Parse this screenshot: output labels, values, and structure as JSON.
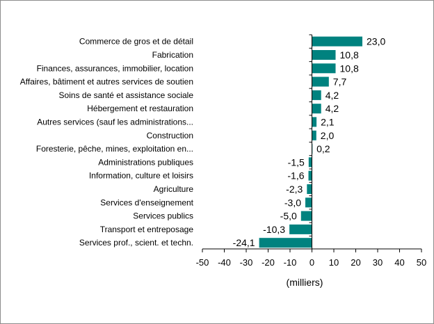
{
  "chart_data": {
    "type": "bar",
    "orientation": "horizontal",
    "categories": [
      "Commerce de gros et de détail",
      "Fabrication",
      "Finances, assurances, immobilier, location",
      "Affaires, bâtiment et autres services de soutien",
      "Soins de santé et assistance sociale",
      "Hébergement et restauration",
      "Autres services (sauf les administrations...",
      "Construction",
      "Foresterie, pêche, mines, exploitation en...",
      "Administrations publiques",
      "Information, culture et loisirs",
      "Agriculture",
      "Services d'enseignement",
      "Services publics",
      "Transport et entreposage",
      "Services prof., scient. et techn."
    ],
    "values": [
      23.0,
      10.8,
      10.8,
      7.7,
      4.2,
      4.2,
      2.1,
      2.0,
      0.2,
      -1.5,
      -1.6,
      -2.3,
      -3.0,
      -5.0,
      -10.3,
      -24.1
    ],
    "value_labels": [
      "23,0",
      "10,8",
      "10,8",
      "7,7",
      "4,2",
      "4,2",
      "2,1",
      "2,0",
      "0,2",
      "-1,5",
      "-1,6",
      "-2,3",
      "-3,0",
      "-5,0",
      "-10,3",
      "-24,1"
    ],
    "xlabel": "(milliers)",
    "xlim": [
      -50,
      50
    ],
    "xticks": [
      "-50",
      "-40",
      "-30",
      "-20",
      "-10",
      "0",
      "10",
      "20",
      "30",
      "40",
      "50"
    ],
    "grid": false,
    "bar_color": "#00827f"
  }
}
